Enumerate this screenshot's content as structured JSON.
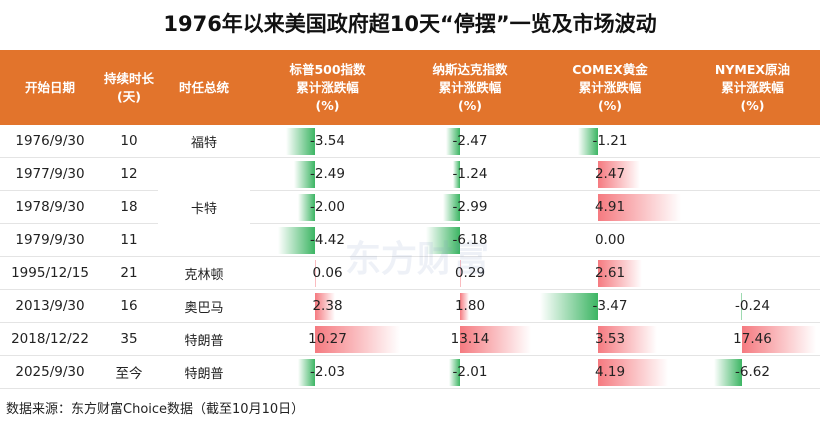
{
  "title": "1976年以来美国政府超10天“停摆”一览及市场波动",
  "columns": [
    [
      "开始日期"
    ],
    [
      "持续时长",
      "(天)"
    ],
    [
      "时任总统"
    ],
    [
      "标普500指数",
      "累计涨跌幅",
      "(%)"
    ],
    [
      "纳斯达克指数",
      "累计涨跌幅",
      "(%)"
    ],
    [
      "COMEX黄金",
      "累计涨跌幅",
      "(%)"
    ],
    [
      "NYMEX原油",
      "累计涨跌幅",
      "(%)"
    ]
  ],
  "dates": [
    "1976/9/30",
    "1977/9/30",
    "1978/9/30",
    "1979/9/30",
    "1995/12/15",
    "2013/9/30",
    "2018/12/22",
    "2025/9/30"
  ],
  "days": [
    10,
    12,
    18,
    11,
    21,
    16,
    35,
    "至今"
  ],
  "presidents": [
    "福特",
    "卡特",
    null,
    null,
    "克林顿",
    "奥巴马",
    "特朗普",
    "特朗普"
  ],
  "indices": [
    {
      "values": [
        -3.54,
        -2.49,
        -2,
        -4.42,
        0.06,
        2.38,
        10.27,
        -2.03
      ],
      "value_labels": [
        "-3.54",
        "-2.49",
        "-2.00",
        "-4.42",
        "0.06",
        "2.38",
        "10.27",
        "-2.03"
      ]
    },
    {
      "values": [
        -2.47,
        -1.24,
        -2.99,
        -6.18,
        0.29,
        1.8,
        13.14,
        -2.01
      ],
      "value_labels": [
        "-2.47",
        "-1.24",
        "-2.99",
        "-6.18",
        "0.29",
        "1.80",
        "13.14",
        "-2.01"
      ]
    },
    {
      "values": [
        -1.21,
        2.47,
        4.91,
        0,
        2.61,
        -3.47,
        3.53,
        4.19
      ],
      "value_labels": [
        "-1.21",
        "2.47",
        "4.91",
        "0.00",
        "2.61",
        "-3.47",
        "3.53",
        "4.19"
      ]
    },
    {
      "values": [
        null,
        null,
        null,
        null,
        null,
        -0.24,
        17.46,
        -6.62
      ],
      "value_labels": [
        null,
        null,
        null,
        null,
        null,
        "-0.24",
        "17.46",
        "-6.62"
      ]
    }
  ],
  "watermark": "东方财富",
  "source": "数据来源：东方财富Choice数据（截至10月10日）"
}
